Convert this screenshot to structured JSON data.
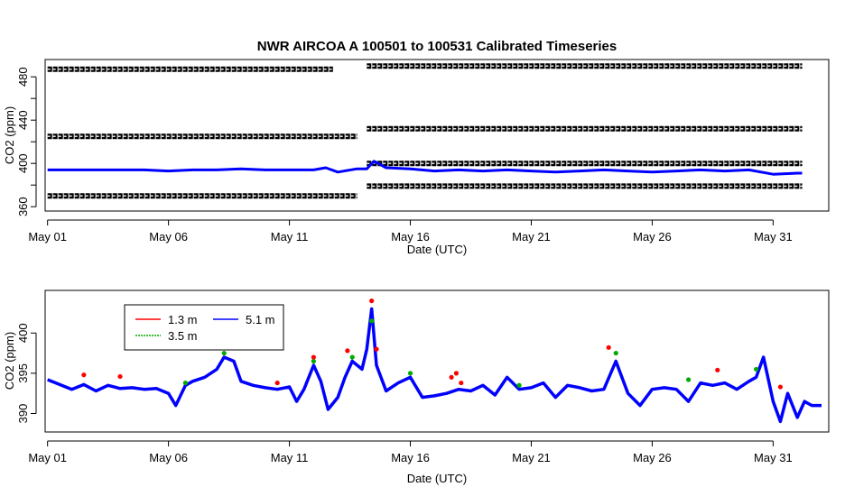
{
  "chart_data": [
    {
      "type": "scatter",
      "title": "NWR   AIRCOA  A    100501  to  100531   Calibrated Timeseries",
      "xlabel": "Date (UTC)",
      "ylabel": "CO2 (ppm)",
      "x_unit": "days",
      "x_start_label": "May 01",
      "xlim": [
        -0.1,
        32.3
      ],
      "ylim": [
        356,
        496
      ],
      "x_ticks": [
        {
          "x": 0,
          "label": "May 01"
        },
        {
          "x": 5,
          "label": "May 06"
        },
        {
          "x": 10,
          "label": "May 11"
        },
        {
          "x": 15,
          "label": "May 16"
        },
        {
          "x": 20,
          "label": "May 21"
        },
        {
          "x": 25,
          "label": "May 26"
        },
        {
          "x": 30,
          "label": "May 31"
        }
      ],
      "y_ticks": [
        360,
        380,
        400,
        420,
        440,
        460,
        480
      ],
      "y_tick_labels": [
        "360",
        "",
        "400",
        "",
        "440",
        "",
        "480"
      ],
      "grid": false,
      "series": [
        {
          "color": "#000000",
          "style": "open-circles",
          "segments": [
            {
              "x": [
                0,
                11.8
              ],
              "y": [
                487,
                487
              ]
            },
            {
              "x": [
                0,
                12.8
              ],
              "y": [
                425,
                425
              ]
            },
            {
              "x": [
                0,
                12.8
              ],
              "y": [
                370,
                370
              ]
            },
            {
              "x": [
                13.2,
                31.2
              ],
              "y": [
                490,
                490
              ]
            },
            {
              "x": [
                13.2,
                31.2
              ],
              "y": [
                432,
                432
              ]
            },
            {
              "x": [
                13.2,
                31.2
              ],
              "y": [
                400,
                400
              ]
            },
            {
              "x": [
                13.2,
                31.2
              ],
              "y": [
                379,
                379
              ]
            }
          ]
        },
        {
          "color": "#0000ff",
          "style": "line",
          "x": [
            0,
            1,
            2,
            3,
            4,
            5,
            6,
            7,
            8,
            9,
            10,
            11,
            11.5,
            12,
            12.8,
            13.2,
            13.5,
            14,
            15,
            16,
            17,
            18,
            19,
            20,
            21,
            22,
            23,
            24,
            25,
            26,
            27,
            28,
            29,
            30,
            31,
            31.2
          ],
          "y": [
            394,
            394,
            394,
            394,
            394,
            393,
            394,
            394,
            395,
            394,
            394,
            394,
            396,
            392,
            395,
            395,
            402,
            396,
            395,
            393,
            394,
            393,
            394,
            393,
            392,
            393,
            394,
            393,
            392,
            393,
            394,
            393,
            394,
            390,
            391,
            391
          ]
        }
      ]
    },
    {
      "type": "scatter",
      "title": "",
      "xlabel": "Date (UTC)",
      "ylabel": "CO2 (ppm)",
      "x_unit": "days",
      "x_start_label": "May 01",
      "xlim": [
        -0.1,
        32.3
      ],
      "ylim": [
        387.7,
        405.3
      ],
      "x_ticks": [
        {
          "x": 0,
          "label": "May 01"
        },
        {
          "x": 5,
          "label": "May 06"
        },
        {
          "x": 10,
          "label": "May 11"
        },
        {
          "x": 15,
          "label": "May 16"
        },
        {
          "x": 20,
          "label": "May 21"
        },
        {
          "x": 25,
          "label": "May 26"
        },
        {
          "x": 30,
          "label": "May 31"
        }
      ],
      "y_ticks": [
        390,
        395,
        400
      ],
      "y_tick_labels": [
        "390",
        "395",
        "400"
      ],
      "grid": false,
      "legend_position": "top-left",
      "legend": [
        {
          "label": "1.3 m",
          "color": "#ff0000"
        },
        {
          "label": "3.5 m",
          "color": "#00aa00"
        },
        {
          "label": "5.1 m",
          "color": "#0000ff"
        }
      ],
      "series": [
        {
          "name": "5.1 m",
          "color": "#0000ff",
          "x": [
            0,
            0.5,
            1,
            1.5,
            2,
            2.5,
            3,
            3.5,
            4,
            4.5,
            5,
            5.3,
            5.7,
            6,
            6.5,
            7,
            7.3,
            7.7,
            8,
            8.5,
            9,
            9.5,
            10,
            10.3,
            10.6,
            11,
            11.3,
            11.6,
            12,
            12.3,
            12.6,
            13,
            13.2,
            13.4,
            13.6,
            14,
            14.5,
            15,
            15.5,
            16,
            16.5,
            17,
            17.5,
            18,
            18.5,
            19,
            19.5,
            20,
            20.5,
            21,
            21.5,
            22,
            22.5,
            23,
            23.5,
            24,
            24.5,
            25,
            25.5,
            26,
            26.5,
            27,
            27.5,
            28,
            28.5,
            29,
            29.3,
            29.6,
            30,
            30.3,
            30.6,
            31,
            31.3,
            31.6,
            32
          ],
          "y": [
            394.2,
            393.6,
            393.0,
            393.6,
            392.8,
            393.5,
            393.1,
            393.2,
            393.0,
            393.1,
            392.5,
            391.0,
            393.5,
            394.0,
            394.5,
            395.5,
            397.0,
            396.5,
            394.0,
            393.5,
            393.2,
            393.0,
            393.3,
            391.5,
            393.0,
            396.0,
            394.0,
            390.5,
            392.0,
            394.5,
            396.5,
            395.5,
            398.0,
            403.0,
            396.0,
            392.8,
            393.8,
            394.5,
            392.0,
            392.2,
            392.5,
            393.0,
            392.8,
            393.5,
            392.3,
            394.5,
            393.0,
            393.2,
            393.8,
            392.0,
            393.5,
            393.2,
            392.8,
            393.0,
            396.5,
            392.5,
            391.0,
            393.0,
            393.2,
            393.0,
            391.5,
            393.8,
            393.5,
            393.8,
            393.0,
            394.0,
            394.5,
            397.0,
            391.5,
            389.0,
            392.5,
            389.5,
            391.5,
            391.0,
            391.0
          ]
        },
        {
          "name": "3.5 m",
          "color": "#00aa00",
          "x": [
            5.7,
            7.3,
            11,
            12.6,
            13.4,
            15,
            19.5,
            23.5,
            26.5,
            29.3
          ],
          "y": [
            393.8,
            397.5,
            396.5,
            397.0,
            401.5,
            395.0,
            393.5,
            397.5,
            394.2,
            395.5
          ]
        },
        {
          "name": "1.3 m",
          "color": "#ff0000",
          "x": [
            1.5,
            3,
            9.5,
            11,
            12.4,
            13.4,
            13.6,
            16.7,
            16.9,
            17.1,
            23.2,
            27.7,
            30.3
          ],
          "y": [
            394.8,
            394.6,
            393.8,
            397.0,
            397.8,
            404.0,
            398.0,
            394.5,
            395.0,
            393.8,
            398.2,
            395.4,
            393.3
          ]
        }
      ]
    }
  ]
}
